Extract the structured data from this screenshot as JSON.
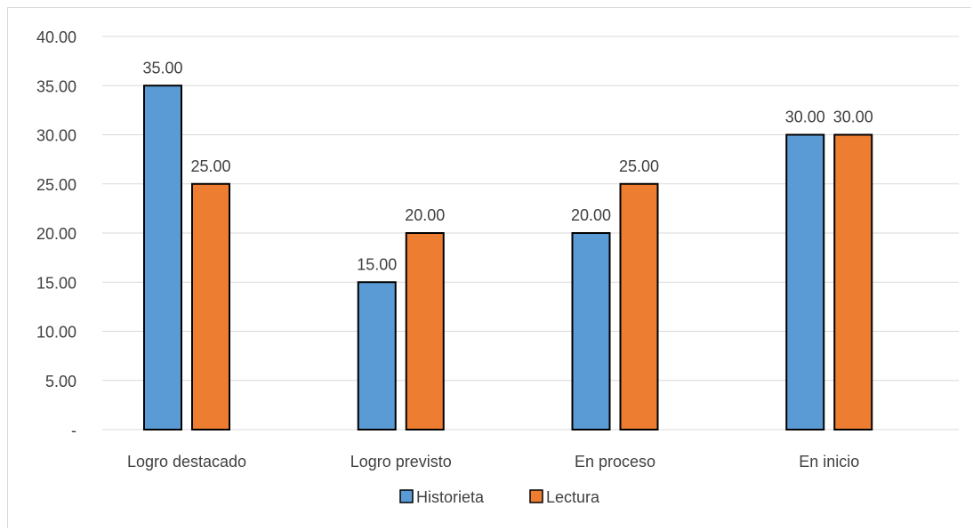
{
  "chart_data": {
    "type": "bar",
    "categories": [
      "Logro destacado",
      "Logro previsto",
      "En proceso",
      "En inicio"
    ],
    "series": [
      {
        "name": "Historieta",
        "values": [
          35,
          15,
          20,
          30
        ],
        "color": "#5b9bd5"
      },
      {
        "name": "Lectura",
        "values": [
          25,
          20,
          25,
          30
        ],
        "color": "#ed7d31"
      }
    ],
    "data_labels": [
      [
        "35.00",
        "15.00",
        "20.00",
        "30.00"
      ],
      [
        "25.00",
        "20.00",
        "25.00",
        "30.00"
      ]
    ],
    "y_tick_labels": [
      "-",
      "5.00",
      "10.00",
      "15.00",
      "20.00",
      "25.00",
      "30.00",
      "35.00",
      "40.00"
    ],
    "ylim": [
      0,
      40
    ],
    "ytick_step": 5,
    "grid": true,
    "legend_position": "bottom",
    "title": "",
    "xlabel": "",
    "ylabel": ""
  }
}
